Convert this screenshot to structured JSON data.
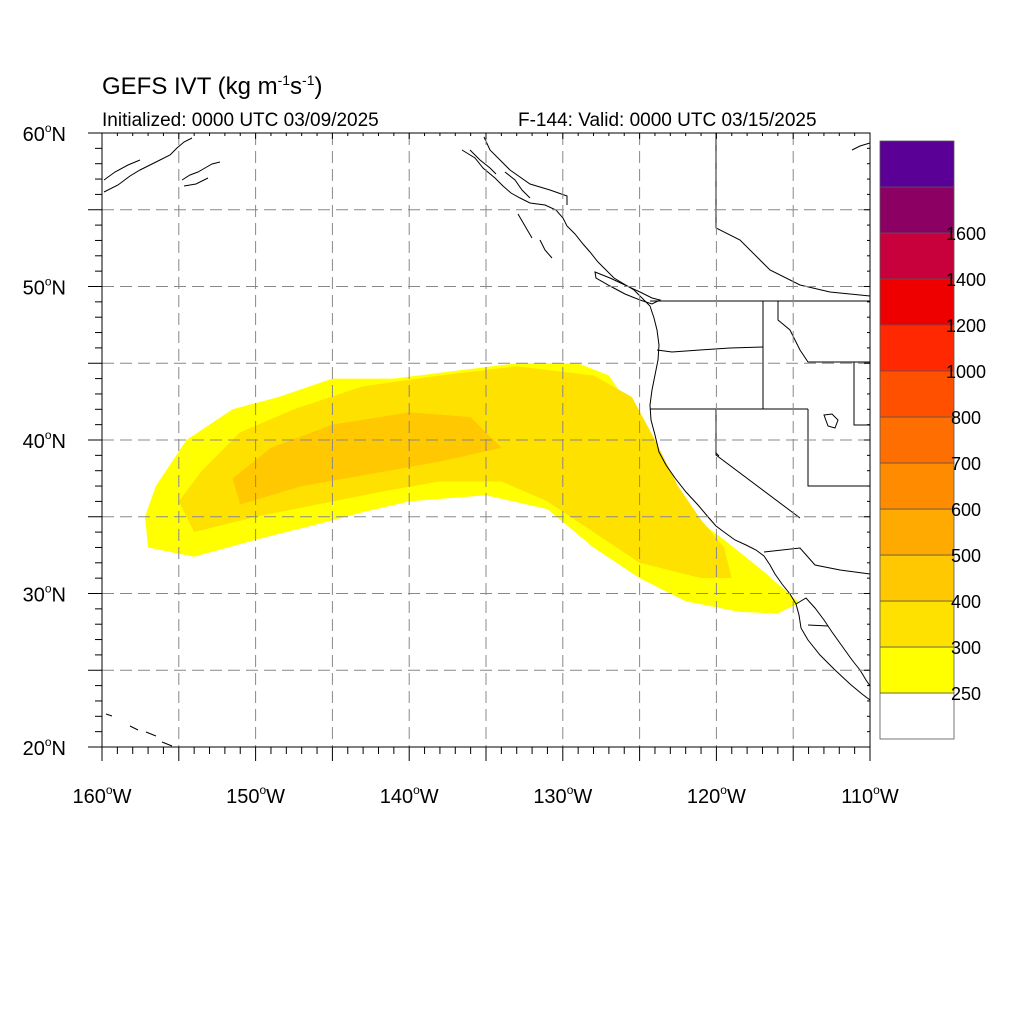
{
  "header": {
    "title_main": "GEFS IVT (kg m",
    "title_exp1": "-1",
    "title_mid": "s",
    "title_exp2": "-1",
    "title_end": ")",
    "initialized": "Initialized: 0000 UTC 03/09/2025",
    "valid": "F-144: Valid: 0000 UTC 03/15/2025"
  },
  "map": {
    "lon_range": [
      -160,
      -110
    ],
    "lat_range": [
      20,
      60
    ],
    "grid": "dashed",
    "lon_labels": [
      {
        "deg": "160",
        "hem": "W",
        "lon": -160
      },
      {
        "deg": "150",
        "hem": "W",
        "lon": -150
      },
      {
        "deg": "140",
        "hem": "W",
        "lon": -140
      },
      {
        "deg": "130",
        "hem": "W",
        "lon": -130
      },
      {
        "deg": "120",
        "hem": "W",
        "lon": -120
      },
      {
        "deg": "110",
        "hem": "W",
        "lon": -110
      }
    ],
    "lat_labels": [
      {
        "deg": "20",
        "hem": "N",
        "lat": 20
      },
      {
        "deg": "30",
        "hem": "N",
        "lat": 30
      },
      {
        "deg": "40",
        "hem": "N",
        "lat": 40
      },
      {
        "deg": "50",
        "hem": "N",
        "lat": 50
      },
      {
        "deg": "60",
        "hem": "N",
        "lat": 60
      }
    ]
  },
  "colorbar": {
    "colors": [
      "#ffffff",
      "#ffff00",
      "#ffe100",
      "#ffc800",
      "#ffaa00",
      "#ff8c00",
      "#ff6e00",
      "#ff5000",
      "#ff2800",
      "#ee0000",
      "#c8003c",
      "#8c0064",
      "#5a0096"
    ],
    "labels": [
      "250",
      "300",
      "400",
      "500",
      "600",
      "700",
      "800",
      "1000",
      "1200",
      "1400",
      "1600"
    ]
  },
  "ivt_field": {
    "description_levels": [
      "250",
      "300",
      "400"
    ],
    "level_250_300": [
      [
        -157.0,
        33.0
      ],
      [
        -154.0,
        32.4
      ],
      [
        -150.0,
        33.5
      ],
      [
        -146.0,
        34.5
      ],
      [
        -143.0,
        35.3
      ],
      [
        -140.0,
        36.0
      ],
      [
        -135.0,
        36.4
      ],
      [
        -131.0,
        35.5
      ],
      [
        -128.0,
        33.0
      ],
      [
        -125.0,
        31.0
      ],
      [
        -122.0,
        29.5
      ],
      [
        -118.5,
        28.8
      ],
      [
        -116.0,
        28.7
      ],
      [
        -114.6,
        29.4
      ],
      [
        -117.0,
        31.5
      ],
      [
        -119.5,
        33.5
      ],
      [
        -121.5,
        35.0
      ],
      [
        -123.0,
        36.8
      ],
      [
        -124.0,
        39.0
      ],
      [
        -125.5,
        42.0
      ],
      [
        -127.0,
        44.2
      ],
      [
        -129.0,
        45.0
      ],
      [
        -133.0,
        45.0
      ],
      [
        -137.0,
        44.5
      ],
      [
        -141.0,
        44.0
      ],
      [
        -145.0,
        44.0
      ],
      [
        -148.5,
        42.8
      ],
      [
        -151.5,
        42.0
      ],
      [
        -154.5,
        40.0
      ],
      [
        -156.5,
        37.0
      ],
      [
        -157.2,
        35.0
      ]
    ],
    "level_300_400": [
      [
        -154.0,
        34.0
      ],
      [
        -150.0,
        35.0
      ],
      [
        -146.0,
        35.8
      ],
      [
        -142.0,
        36.6
      ],
      [
        -138.0,
        37.3
      ],
      [
        -134.0,
        37.3
      ],
      [
        -131.0,
        36.0
      ],
      [
        -128.0,
        34.0
      ],
      [
        -125.0,
        32.0
      ],
      [
        -121.0,
        31.0
      ],
      [
        -119.0,
        31.0
      ],
      [
        -119.5,
        33.0
      ],
      [
        -121.0,
        34.8
      ],
      [
        -122.5,
        37.0
      ],
      [
        -124.0,
        40.0
      ],
      [
        -125.5,
        42.8
      ],
      [
        -128.0,
        44.2
      ],
      [
        -133.0,
        44.8
      ],
      [
        -138.0,
        44.2
      ],
      [
        -143.0,
        43.5
      ],
      [
        -147.5,
        42.0
      ],
      [
        -151.0,
        40.5
      ],
      [
        -153.5,
        38.0
      ],
      [
        -155.0,
        36.0
      ]
    ],
    "level_400_500": [
      [
        -151.0,
        35.8
      ],
      [
        -147.0,
        37.0
      ],
      [
        -143.0,
        37.7
      ],
      [
        -138.0,
        38.6
      ],
      [
        -134.0,
        39.5
      ],
      [
        -136.0,
        41.5
      ],
      [
        -140.0,
        41.8
      ],
      [
        -145.0,
        41.0
      ],
      [
        -149.0,
        39.5
      ],
      [
        -151.5,
        37.5
      ]
    ]
  }
}
